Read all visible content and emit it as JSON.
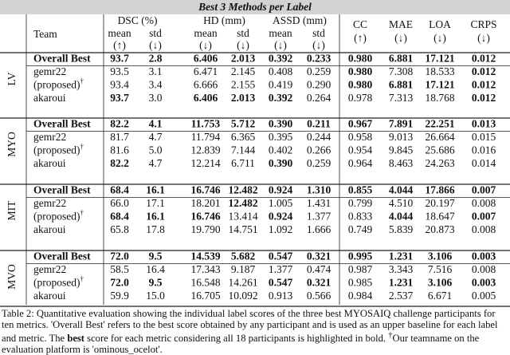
{
  "title": "Best 3 Methods per Label",
  "header": {
    "team": "Team",
    "groups": [
      {
        "label": "DSC (%)",
        "subs": [
          "mean",
          "std"
        ],
        "arrows": [
          "(↑)",
          "(↓)"
        ]
      },
      {
        "label": "HD (mm)",
        "subs": [
          "mean",
          "std"
        ],
        "arrows": [
          "(↓)",
          "(↓)"
        ]
      },
      {
        "label": "ASSD (mm)",
        "subs": [
          "mean",
          "std"
        ],
        "arrows": [
          "(↓)",
          "(↓)"
        ]
      }
    ],
    "metrics": [
      {
        "label": "CC",
        "arrow": "(↑)"
      },
      {
        "label": "MAE",
        "arrow": "(↓)"
      },
      {
        "label": "LOA",
        "arrow": "(↓)"
      },
      {
        "label": "CRPS",
        "arrow": "(↓)"
      }
    ]
  },
  "sections": [
    {
      "label": "LV",
      "rows": [
        {
          "team": "Overall Best",
          "values": [
            "93.7",
            "2.8",
            "6.406",
            "2.013",
            "0.392",
            "0.233",
            "0.980",
            "6.881",
            "17.121",
            "0.012"
          ],
          "bold": [
            0,
            1,
            2,
            3,
            4,
            5,
            6,
            7,
            8,
            9
          ],
          "team_bold": true
        },
        {
          "team": "gemr22",
          "values": [
            "93.5",
            "3.1",
            "6.471",
            "2.145",
            "0.408",
            "0.259",
            "0.980",
            "7.308",
            "18.533",
            "0.012"
          ],
          "bold": [
            6,
            9
          ]
        },
        {
          "team": "(proposed)",
          "mark": "†",
          "values": [
            "93.4",
            "3.4",
            "6.666",
            "2.155",
            "0.419",
            "0.290",
            "0.980",
            "6.881",
            "17.121",
            "0.012"
          ],
          "bold": [
            6,
            7,
            8,
            9
          ]
        },
        {
          "team": "akaroui",
          "values": [
            "93.7",
            "3.0",
            "6.406",
            "2.013",
            "0.392",
            "0.264",
            "0.978",
            "7.313",
            "18.768",
            "0.012"
          ],
          "bold": [
            0,
            2,
            3,
            4,
            9
          ]
        }
      ]
    },
    {
      "label": "MYO",
      "rows": [
        {
          "team": "Overall Best",
          "values": [
            "82.2",
            "4.1",
            "11.753",
            "5.712",
            "0.390",
            "0.211",
            "0.967",
            "7.891",
            "22.251",
            "0.013"
          ],
          "bold": [
            0,
            1,
            2,
            3,
            4,
            5,
            6,
            7,
            8,
            9
          ],
          "team_bold": true
        },
        {
          "team": "gemr22",
          "values": [
            "81.7",
            "4.7",
            "11.794",
            "6.365",
            "0.395",
            "0.244",
            "0.958",
            "9.013",
            "26.664",
            "0.015"
          ],
          "bold": []
        },
        {
          "team": "(proposed)",
          "mark": "†",
          "values": [
            "81.6",
            "5.0",
            "12.839",
            "7.144",
            "0.402",
            "0.266",
            "0.954",
            "9.845",
            "25.686",
            "0.016"
          ],
          "bold": []
        },
        {
          "team": "akaroui",
          "values": [
            "82.2",
            "4.7",
            "12.214",
            "6.711",
            "0.390",
            "0.259",
            "0.964",
            "8.463",
            "24.263",
            "0.014"
          ],
          "bold": [
            0,
            4
          ]
        }
      ]
    },
    {
      "label": "MIT",
      "rows": [
        {
          "team": "Overall Best",
          "values": [
            "68.4",
            "16.1",
            "16.746",
            "12.482",
            "0.924",
            "1.310",
            "0.855",
            "4.044",
            "17.866",
            "0.007"
          ],
          "bold": [
            0,
            1,
            2,
            3,
            4,
            5,
            6,
            7,
            8,
            9
          ],
          "team_bold": true
        },
        {
          "team": "gemr22",
          "values": [
            "66.0",
            "17.1",
            "18.201",
            "12.482",
            "1.005",
            "1.431",
            "0.799",
            "4.510",
            "20.197",
            "0.008"
          ],
          "bold": [
            3
          ]
        },
        {
          "team": "(proposed)",
          "mark": "†",
          "values": [
            "68.4",
            "16.1",
            "16.746",
            "13.414",
            "0.924",
            "1.377",
            "0.833",
            "4.044",
            "18.647",
            "0.007"
          ],
          "bold": [
            0,
            1,
            2,
            4,
            7,
            9
          ]
        },
        {
          "team": "akaroui",
          "values": [
            "65.8",
            "17.8",
            "19.790",
            "14.751",
            "1.092",
            "1.666",
            "0.749",
            "5.839",
            "20.873",
            "0.008"
          ],
          "bold": []
        }
      ]
    },
    {
      "label": "MVO",
      "rows": [
        {
          "team": "Overall Best",
          "values": [
            "72.0",
            "9.5",
            "14.539",
            "5.682",
            "0.547",
            "0.321",
            "0.995",
            "1.231",
            "3.106",
            "0.003"
          ],
          "bold": [
            0,
            1,
            2,
            3,
            4,
            5,
            6,
            7,
            8,
            9
          ],
          "team_bold": true
        },
        {
          "team": "gemr22",
          "values": [
            "58.5",
            "16.4",
            "17.343",
            "9.187",
            "1.377",
            "0.474",
            "0.987",
            "3.343",
            "7.516",
            "0.008"
          ],
          "bold": []
        },
        {
          "team": "(proposed)",
          "mark": "†",
          "values": [
            "72.0",
            "9.5",
            "16.548",
            "14.261",
            "0.547",
            "0.321",
            "0.985",
            "1.231",
            "3.106",
            "0.003"
          ],
          "bold": [
            0,
            1,
            4,
            5,
            7,
            8,
            9
          ]
        },
        {
          "team": "akaroui",
          "values": [
            "59.9",
            "15.0",
            "16.705",
            "10.092",
            "0.913",
            "0.566",
            "0.984",
            "2.537",
            "6.671",
            "0.005"
          ],
          "bold": []
        }
      ]
    }
  ],
  "caption": {
    "intro": "Table 2: Quantitative evaluation showing the individual label scores of the three best MYOSAIQ challenge participants for ten metrics. 'Overall Best' refers to the best score obtained by any participant and is used as an upper baseline for each label and metric. The",
    "bold": "best",
    "rest": "score for each metric considering all 18 participants is highlighted in bold.",
    "dagger": "†",
    "note": "Our teamname on the evaluation platform is 'ominous_ocelot'."
  }
}
